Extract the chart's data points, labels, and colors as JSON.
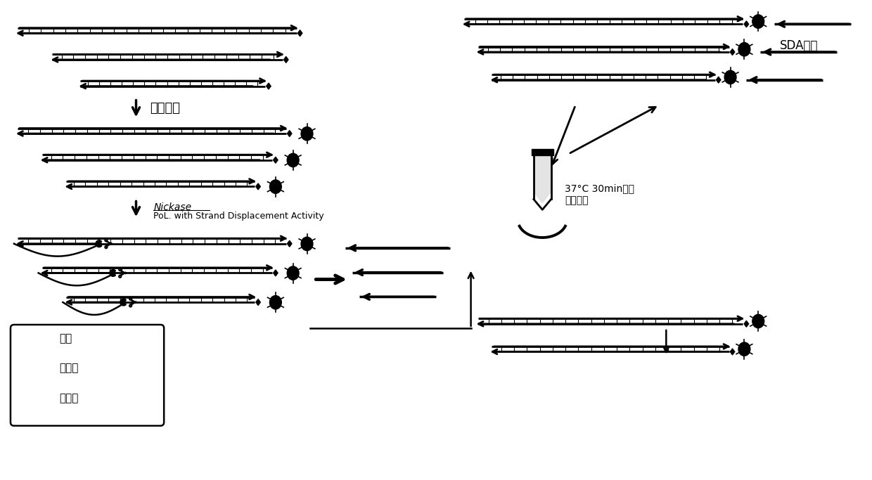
{
  "bg_color": "#ffffff",
  "line_color": "#000000",
  "labels": {
    "magnetic_adsorption": "磁珠吸附",
    "nickase": "Nickase",
    "pol": "PoL. with Strand Displacement Activity",
    "sda_product": "SDA产物",
    "temperature": "37°C 30min之后",
    "absorb": "吸取上清",
    "legend_bead": "磁珠",
    "legend_nickase": "缺口酶",
    "legend_pol": "聚合酶"
  }
}
